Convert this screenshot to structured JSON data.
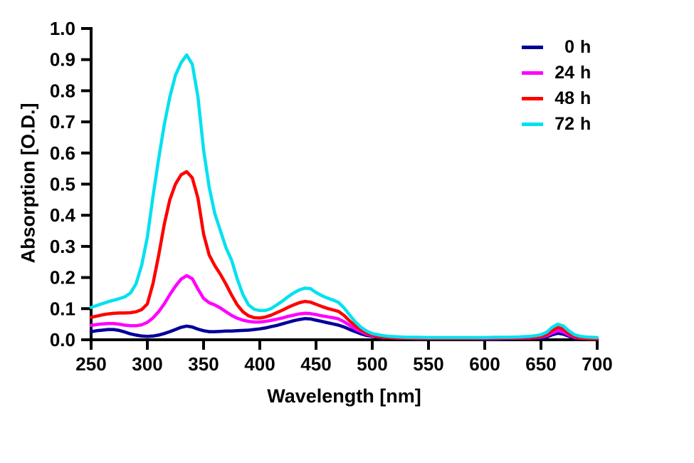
{
  "figure": {
    "background": "#FFFFFF",
    "text_color": "#000000"
  },
  "chart_data": {
    "type": "line",
    "title": "",
    "xlabel": "Wavelength [nm]",
    "ylabel": "Absorption [O.D.]",
    "xlim": [
      250,
      700
    ],
    "ylim": [
      0.0,
      1.0
    ],
    "xticks": [
      250,
      300,
      350,
      400,
      450,
      500,
      550,
      600,
      650,
      700
    ],
    "yticks": [
      0.0,
      0.1,
      0.2,
      0.3,
      0.4,
      0.5,
      0.6,
      0.7,
      0.8,
      0.9,
      1.0
    ],
    "grid": false,
    "legend_position": "top-right",
    "x": [
      250,
      255,
      260,
      265,
      270,
      275,
      280,
      285,
      290,
      295,
      300,
      305,
      310,
      315,
      320,
      325,
      330,
      335,
      340,
      345,
      350,
      355,
      360,
      365,
      370,
      375,
      380,
      385,
      390,
      395,
      400,
      405,
      410,
      415,
      420,
      425,
      430,
      435,
      440,
      445,
      450,
      455,
      460,
      465,
      470,
      475,
      480,
      485,
      490,
      495,
      500,
      505,
      510,
      515,
      520,
      530,
      540,
      550,
      560,
      570,
      580,
      590,
      600,
      610,
      620,
      630,
      640,
      645,
      650,
      655,
      660,
      665,
      670,
      675,
      680,
      685,
      690,
      695,
      700
    ],
    "series": [
      {
        "name": "0 h",
        "color": "#000099",
        "values": [
          0.026,
          0.029,
          0.031,
          0.033,
          0.033,
          0.03,
          0.025,
          0.019,
          0.015,
          0.012,
          0.011,
          0.012,
          0.015,
          0.02,
          0.026,
          0.033,
          0.04,
          0.044,
          0.041,
          0.034,
          0.029,
          0.026,
          0.026,
          0.027,
          0.028,
          0.028,
          0.029,
          0.03,
          0.031,
          0.033,
          0.035,
          0.038,
          0.042,
          0.046,
          0.051,
          0.056,
          0.061,
          0.065,
          0.068,
          0.067,
          0.063,
          0.059,
          0.055,
          0.051,
          0.047,
          0.041,
          0.033,
          0.026,
          0.019,
          0.014,
          0.011,
          0.009,
          0.007,
          0.006,
          0.005,
          0.004,
          0.004,
          0.003,
          0.003,
          0.003,
          0.003,
          0.003,
          0.003,
          0.003,
          0.003,
          0.004,
          0.004,
          0.005,
          0.006,
          0.009,
          0.016,
          0.021,
          0.018,
          0.011,
          0.006,
          0.004,
          0.003,
          0.003,
          0.002
        ]
      },
      {
        "name": "24 h",
        "color": "#FF00FF",
        "values": [
          0.046,
          0.049,
          0.051,
          0.052,
          0.052,
          0.05,
          0.047,
          0.045,
          0.045,
          0.048,
          0.056,
          0.07,
          0.09,
          0.115,
          0.145,
          0.172,
          0.195,
          0.206,
          0.196,
          0.163,
          0.133,
          0.119,
          0.112,
          0.102,
          0.09,
          0.078,
          0.069,
          0.063,
          0.059,
          0.057,
          0.057,
          0.059,
          0.062,
          0.066,
          0.07,
          0.075,
          0.079,
          0.083,
          0.085,
          0.084,
          0.081,
          0.077,
          0.074,
          0.071,
          0.067,
          0.058,
          0.046,
          0.035,
          0.026,
          0.018,
          0.013,
          0.01,
          0.008,
          0.007,
          0.006,
          0.005,
          0.004,
          0.004,
          0.004,
          0.004,
          0.004,
          0.004,
          0.004,
          0.004,
          0.005,
          0.005,
          0.006,
          0.007,
          0.009,
          0.013,
          0.022,
          0.029,
          0.025,
          0.015,
          0.008,
          0.005,
          0.004,
          0.003,
          0.003
        ]
      },
      {
        "name": "48 h",
        "color": "#FF0000",
        "values": [
          0.072,
          0.076,
          0.08,
          0.083,
          0.085,
          0.086,
          0.086,
          0.087,
          0.09,
          0.097,
          0.115,
          0.18,
          0.27,
          0.37,
          0.45,
          0.5,
          0.53,
          0.54,
          0.52,
          0.455,
          0.34,
          0.272,
          0.238,
          0.21,
          0.178,
          0.143,
          0.112,
          0.09,
          0.077,
          0.071,
          0.07,
          0.073,
          0.079,
          0.087,
          0.095,
          0.104,
          0.112,
          0.119,
          0.123,
          0.121,
          0.114,
          0.107,
          0.101,
          0.096,
          0.091,
          0.078,
          0.06,
          0.045,
          0.032,
          0.022,
          0.015,
          0.011,
          0.009,
          0.007,
          0.006,
          0.005,
          0.005,
          0.004,
          0.004,
          0.004,
          0.004,
          0.004,
          0.005,
          0.005,
          0.005,
          0.006,
          0.007,
          0.008,
          0.011,
          0.017,
          0.03,
          0.04,
          0.034,
          0.02,
          0.01,
          0.006,
          0.004,
          0.003,
          0.003
        ]
      },
      {
        "name": "72 h",
        "color": "#00E1F0",
        "values": [
          0.104,
          0.11,
          0.116,
          0.122,
          0.127,
          0.132,
          0.138,
          0.15,
          0.18,
          0.24,
          0.33,
          0.46,
          0.58,
          0.69,
          0.78,
          0.85,
          0.89,
          0.915,
          0.885,
          0.78,
          0.61,
          0.49,
          0.405,
          0.35,
          0.295,
          0.255,
          0.195,
          0.145,
          0.112,
          0.098,
          0.094,
          0.094,
          0.1,
          0.112,
          0.124,
          0.138,
          0.15,
          0.16,
          0.166,
          0.164,
          0.152,
          0.142,
          0.134,
          0.128,
          0.12,
          0.102,
          0.079,
          0.057,
          0.04,
          0.028,
          0.02,
          0.016,
          0.013,
          0.011,
          0.01,
          0.008,
          0.008,
          0.007,
          0.007,
          0.007,
          0.007,
          0.007,
          0.007,
          0.008,
          0.008,
          0.009,
          0.011,
          0.013,
          0.016,
          0.024,
          0.04,
          0.05,
          0.044,
          0.028,
          0.016,
          0.011,
          0.009,
          0.008,
          0.007
        ]
      }
    ]
  }
}
